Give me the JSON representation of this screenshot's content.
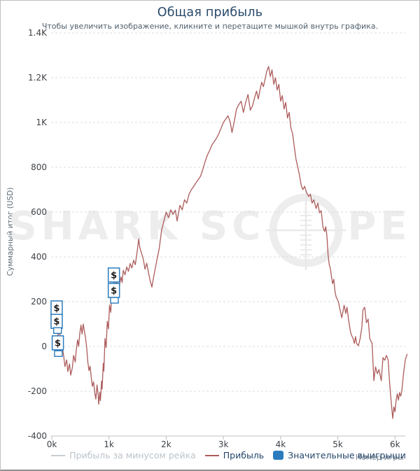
{
  "header": {
    "title": "Общая прибыль",
    "subtitle": "Чтобы увеличить изображение, кликните и перетащите мышкой внутрь графика."
  },
  "watermark": {
    "part1": "SHARK SC",
    "part2": "PE"
  },
  "axes": {
    "y_title": "Суммарный итог (USD)",
    "x_title": "Номер игры"
  },
  "legend": {
    "items": [
      {
        "label": "Прибыль за минусом рейка",
        "swatch": "line",
        "color": "#c6ccd1",
        "text_color": "#bcc3c9",
        "enabled": false
      },
      {
        "label": "Прибыль",
        "swatch": "line",
        "color": "#ad5c5c",
        "text_color": "#24466b",
        "enabled": true
      },
      {
        "label": "Значительные выигрыши",
        "swatch": "square",
        "color": "#2b7cbe",
        "text_color": "#24466b",
        "enabled": true
      }
    ]
  },
  "colors": {
    "line_red": "#ad5c5c",
    "marker_blue": "#2b7cbe",
    "grid": "#dcdcdc",
    "axis": "#c3c3c3",
    "title_navy": "#2a4a6b",
    "watermark_gray": "#ededed"
  },
  "chart_data": {
    "type": "line",
    "title": "Общая прибыль",
    "xlabel": "Номер игры",
    "ylabel": "Суммарный итог (USD)",
    "xlim": [
      0,
      6180
    ],
    "ylim": [
      -400,
      1400
    ],
    "grid": "horizontal-dashed",
    "legend_position": "bottom",
    "x_ticks": [
      {
        "v": 0,
        "label": "0k"
      },
      {
        "v": 1000,
        "label": "1k"
      },
      {
        "v": 2000,
        "label": "2k"
      },
      {
        "v": 3000,
        "label": "3k"
      },
      {
        "v": 4000,
        "label": "4k"
      },
      {
        "v": 5000,
        "label": "5k"
      },
      {
        "v": 6000,
        "label": "6k"
      }
    ],
    "y_ticks": [
      {
        "v": 1400,
        "label": "1.4K"
      },
      {
        "v": 1200,
        "label": "1.2K"
      },
      {
        "v": 1000,
        "label": "1K"
      },
      {
        "v": 800,
        "label": "800"
      },
      {
        "v": 600,
        "label": "600"
      },
      {
        "v": 400,
        "label": "400"
      },
      {
        "v": 200,
        "label": "200"
      },
      {
        "v": 0,
        "label": "0"
      },
      {
        "v": -200,
        "label": "-200"
      },
      {
        "v": -400,
        "label": "-400"
      }
    ],
    "hidden_series": [
      "Прибыль за минусом рейка"
    ],
    "series": [
      {
        "name": "Прибыль",
        "color": "#ad5c5c",
        "points": [
          [
            0,
            155
          ],
          [
            20,
            128
          ],
          [
            45,
            168
          ],
          [
            70,
            95
          ],
          [
            90,
            125
          ],
          [
            110,
            48
          ],
          [
            140,
            70
          ],
          [
            160,
            -20
          ],
          [
            180,
            5
          ],
          [
            210,
            -48
          ],
          [
            230,
            -90
          ],
          [
            260,
            -60
          ],
          [
            280,
            -112
          ],
          [
            310,
            -78
          ],
          [
            330,
            -128
          ],
          [
            360,
            -95
          ],
          [
            380,
            -40
          ],
          [
            410,
            -70
          ],
          [
            430,
            -12
          ],
          [
            450,
            30
          ],
          [
            470,
            0
          ],
          [
            490,
            58
          ],
          [
            510,
            95
          ],
          [
            530,
            55
          ],
          [
            550,
            100
          ],
          [
            570,
            68
          ],
          [
            590,
            38
          ],
          [
            610,
            -5
          ],
          [
            630,
            -70
          ],
          [
            650,
            -108
          ],
          [
            670,
            -88
          ],
          [
            690,
            -140
          ],
          [
            710,
            -178
          ],
          [
            730,
            -158
          ],
          [
            750,
            -205
          ],
          [
            770,
            -235
          ],
          [
            790,
            -172
          ],
          [
            810,
            -215
          ],
          [
            820,
            -258
          ],
          [
            840,
            -205
          ],
          [
            850,
            -242
          ],
          [
            870,
            -155
          ],
          [
            880,
            -190
          ],
          [
            900,
            -75
          ],
          [
            910,
            -110
          ],
          [
            930,
            35
          ],
          [
            950,
            -5
          ],
          [
            970,
            112
          ],
          [
            990,
            78
          ],
          [
            1010,
            185
          ],
          [
            1030,
            152
          ],
          [
            1050,
            242
          ],
          [
            1070,
            215
          ],
          [
            1090,
            292
          ],
          [
            1110,
            252
          ],
          [
            1130,
            302
          ],
          [
            1150,
            262
          ],
          [
            1170,
            248
          ],
          [
            1190,
            282
          ],
          [
            1210,
            310
          ],
          [
            1230,
            285
          ],
          [
            1250,
            340
          ],
          [
            1280,
            320
          ],
          [
            1310,
            355
          ],
          [
            1340,
            335
          ],
          [
            1370,
            370
          ],
          [
            1400,
            350
          ],
          [
            1430,
            385
          ],
          [
            1460,
            365
          ],
          [
            1490,
            420
          ],
          [
            1520,
            480
          ],
          [
            1540,
            440
          ],
          [
            1570,
            415
          ],
          [
            1600,
            390
          ],
          [
            1630,
            345
          ],
          [
            1660,
            372
          ],
          [
            1690,
            330
          ],
          [
            1720,
            292
          ],
          [
            1750,
            265
          ],
          [
            1780,
            310
          ],
          [
            1810,
            350
          ],
          [
            1840,
            390
          ],
          [
            1880,
            440
          ],
          [
            1920,
            520
          ],
          [
            1960,
            560
          ],
          [
            2000,
            600
          ],
          [
            2040,
            575
          ],
          [
            2080,
            610
          ],
          [
            2120,
            590
          ],
          [
            2160,
            608
          ],
          [
            2190,
            560
          ],
          [
            2240,
            630
          ],
          [
            2280,
            610
          ],
          [
            2320,
            655
          ],
          [
            2360,
            640
          ],
          [
            2400,
            680
          ],
          [
            2440,
            700
          ],
          [
            2480,
            715
          ],
          [
            2520,
            730
          ],
          [
            2560,
            745
          ],
          [
            2600,
            760
          ],
          [
            2640,
            790
          ],
          [
            2680,
            825
          ],
          [
            2720,
            855
          ],
          [
            2760,
            875
          ],
          [
            2800,
            900
          ],
          [
            2840,
            915
          ],
          [
            2880,
            930
          ],
          [
            2920,
            950
          ],
          [
            2960,
            975
          ],
          [
            3000,
            1000
          ],
          [
            3040,
            1015
          ],
          [
            3080,
            1030
          ],
          [
            3120,
            1000
          ],
          [
            3150,
            955
          ],
          [
            3190,
            1005
          ],
          [
            3230,
            1060
          ],
          [
            3270,
            1080
          ],
          [
            3310,
            1095
          ],
          [
            3350,
            1045
          ],
          [
            3390,
            1090
          ],
          [
            3430,
            1125
          ],
          [
            3470,
            1055
          ],
          [
            3510,
            1075
          ],
          [
            3550,
            1115
          ],
          [
            3580,
            1140
          ],
          [
            3610,
            1105
          ],
          [
            3640,
            1145
          ],
          [
            3670,
            1180
          ],
          [
            3700,
            1160
          ],
          [
            3730,
            1195
          ],
          [
            3760,
            1230
          ],
          [
            3790,
            1250
          ],
          [
            3820,
            1205
          ],
          [
            3850,
            1235
          ],
          [
            3880,
            1170
          ],
          [
            3910,
            1200
          ],
          [
            3940,
            1145
          ],
          [
            3970,
            1170
          ],
          [
            4000,
            1095
          ],
          [
            4030,
            1120
          ],
          [
            4060,
            1060
          ],
          [
            4090,
            1090
          ],
          [
            4120,
            1020
          ],
          [
            4150,
            1045
          ],
          [
            4180,
            975
          ],
          [
            4210,
            950
          ],
          [
            4240,
            890
          ],
          [
            4270,
            835
          ],
          [
            4300,
            800
          ],
          [
            4330,
            765
          ],
          [
            4360,
            720
          ],
          [
            4390,
            700
          ],
          [
            4420,
            715
          ],
          [
            4450,
            690
          ],
          [
            4490,
            669
          ],
          [
            4520,
            680
          ],
          [
            4550,
            640
          ],
          [
            4580,
            655
          ],
          [
            4620,
            616
          ],
          [
            4650,
            640
          ],
          [
            4680,
            597
          ],
          [
            4710,
            606
          ],
          [
            4740,
            534
          ],
          [
            4770,
            513
          ],
          [
            4790,
            535
          ],
          [
            4810,
            491
          ],
          [
            4830,
            409
          ],
          [
            4850,
            366
          ],
          [
            4870,
            347
          ],
          [
            4890,
            310
          ],
          [
            4910,
            280
          ],
          [
            4930,
            300
          ],
          [
            4950,
            247
          ],
          [
            4970,
            222
          ],
          [
            5010,
            200
          ],
          [
            5040,
            163
          ],
          [
            5070,
            128
          ],
          [
            5110,
            184
          ],
          [
            5140,
            147
          ],
          [
            5160,
            175
          ],
          [
            5190,
            116
          ],
          [
            5220,
            66
          ],
          [
            5240,
            50
          ],
          [
            5270,
            34
          ],
          [
            5290,
            13
          ],
          [
            5310,
            44
          ],
          [
            5330,
            13
          ],
          [
            5360,
            3
          ],
          [
            5390,
            34
          ],
          [
            5420,
            84
          ],
          [
            5440,
            163
          ],
          [
            5470,
            175
          ],
          [
            5500,
            106
          ],
          [
            5530,
            122
          ],
          [
            5560,
            34
          ],
          [
            5600,
            13
          ],
          [
            5630,
            -153
          ],
          [
            5660,
            -91
          ],
          [
            5690,
            -122
          ],
          [
            5720,
            -103
          ],
          [
            5760,
            -153
          ],
          [
            5790,
            -50
          ],
          [
            5820,
            -62
          ],
          [
            5850,
            -40
          ],
          [
            5880,
            -60
          ],
          [
            5900,
            -140
          ],
          [
            5920,
            -210
          ],
          [
            5940,
            -265
          ],
          [
            5960,
            -322
          ],
          [
            5980,
            -270
          ],
          [
            6000,
            -292
          ],
          [
            6020,
            -240
          ],
          [
            6040,
            -212
          ],
          [
            6060,
            -240
          ],
          [
            6080,
            -206
          ],
          [
            6100,
            -222
          ],
          [
            6120,
            -197
          ],
          [
            6150,
            -120
          ],
          [
            6180,
            -60
          ],
          [
            6210,
            -35
          ]
        ]
      }
    ],
    "markers": {
      "name": "Значительные выигрыши",
      "color": "#2b7cbe",
      "glyph": "$",
      "items": [
        {
          "game": 85,
          "value": 172,
          "dollar": true
        },
        {
          "game": 85,
          "value": 112,
          "dollar": true
        },
        {
          "game": 100,
          "value": 71,
          "dollar": false
        },
        {
          "game": 105,
          "value": 16,
          "dollar": true
        },
        {
          "game": 115,
          "value": -32,
          "dollar": false
        },
        {
          "game": 1085,
          "value": 319,
          "dollar": true
        },
        {
          "game": 1085,
          "value": 250,
          "dollar": true
        },
        {
          "game": 1095,
          "value": 206,
          "dollar": false
        }
      ]
    }
  }
}
